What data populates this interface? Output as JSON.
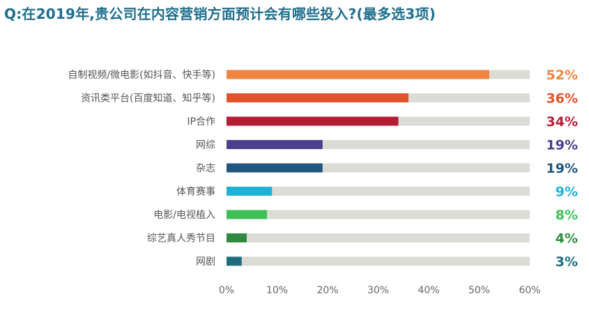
{
  "header": {
    "question": "Q:在2019年,贵公司在内容营销方面预计会有哪些投入?(最多选3项)"
  },
  "colors": {
    "title": "#1f6e8c",
    "track": "#dcdcd6",
    "axis_text": "#666666",
    "label_text": "#555555"
  },
  "chart_data": {
    "type": "bar",
    "orientation": "horizontal",
    "title": "",
    "xlabel": "",
    "ylabel": "",
    "xlim": [
      0,
      60
    ],
    "xticks": [
      "0%",
      "10%",
      "20%",
      "30%",
      "40%",
      "50%",
      "60%"
    ],
    "grid": false,
    "legend": "none",
    "categories": [
      "自制视频/微电影(如抖音、快手等)",
      "资讯类平台(百度知道、知乎等)",
      "IP合作",
      "网综",
      "杂志",
      "体育赛事",
      "电影/电视植入",
      "综艺真人秀节目",
      "网剧"
    ],
    "values": [
      52,
      36,
      34,
      19,
      19,
      9,
      8,
      4,
      3
    ],
    "value_labels": [
      "52%",
      "36%",
      "34%",
      "19%",
      "19%",
      "9%",
      "8%",
      "4%",
      "3%"
    ],
    "bar_colors": [
      "#f08542",
      "#e0522a",
      "#b51d33",
      "#4b3e8a",
      "#20577e",
      "#20b2d6",
      "#3fbf57",
      "#2f8a40",
      "#1d6d7d"
    ]
  }
}
